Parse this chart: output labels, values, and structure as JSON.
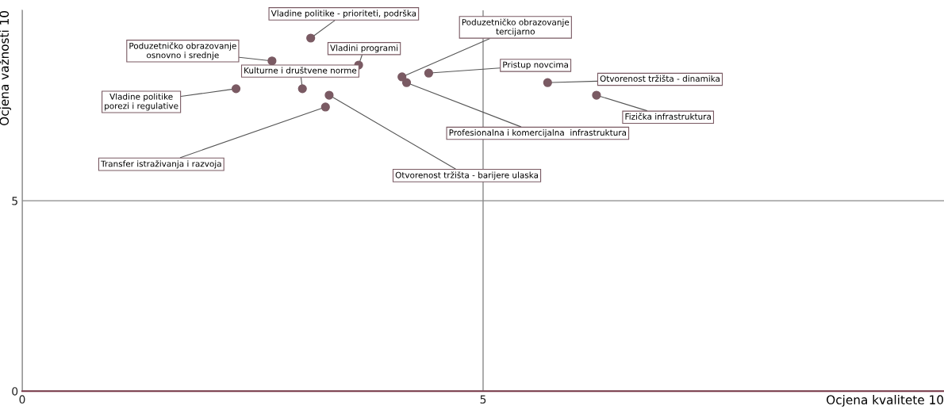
{
  "chart_data": {
    "type": "scatter",
    "xlabel": "Ocjena kvalitete 10",
    "ylabel": "Ocjena važnosti 10",
    "x": [
      3.13,
      2.71,
      3.65,
      4.12,
      4.41,
      5.7,
      6.23,
      2.32,
      3.04,
      3.33,
      3.29,
      4.17
    ],
    "series": [
      {
        "color": "#7a5a63",
        "values": [
          9.27,
          8.67,
          8.56,
          8.25,
          8.35,
          8.1,
          7.77,
          7.94,
          7.94,
          7.77,
          7.46,
          8.1
        ]
      }
    ],
    "xlim": [
      0,
      10
    ],
    "ylim": [
      0,
      10
    ],
    "xticks": [
      0,
      5
    ],
    "yticks": [
      0,
      5
    ],
    "grid": true,
    "marker": "circle",
    "annotations": [
      {
        "text": "Vladine politike - prioriteti, podrška",
        "x": 3.13,
        "y": 9.27
      },
      {
        "text": "Poduzetničko obrazovanje\nosnovno i srednje",
        "x": 2.71,
        "y": 8.67
      },
      {
        "text": "Vladini programi",
        "x": 3.65,
        "y": 8.56
      },
      {
        "text": "Poduzetničko obrazovanje\ntercijarno",
        "x": 4.12,
        "y": 8.25
      },
      {
        "text": "Pristup novcima",
        "x": 4.41,
        "y": 8.35
      },
      {
        "text": "Otvorenost tržišta - dinamika",
        "x": 5.7,
        "y": 8.1
      },
      {
        "text": "Fizička infrastruktura",
        "x": 6.23,
        "y": 7.77
      },
      {
        "text": "Vladine politike\nporezi i regulative",
        "x": 2.32,
        "y": 7.94
      },
      {
        "text": "Kulturne i društvene norme",
        "x": 3.04,
        "y": 7.94
      },
      {
        "text": "Otvorenost tržišta - barijere ulaska",
        "x": 3.33,
        "y": 7.77
      },
      {
        "text": "Transfer istraživanja i razvoja",
        "x": 3.29,
        "y": 7.46
      },
      {
        "text": "Profesionalna i komercijalna  infrastruktura",
        "x": 4.17,
        "y": 8.1
      }
    ]
  }
}
